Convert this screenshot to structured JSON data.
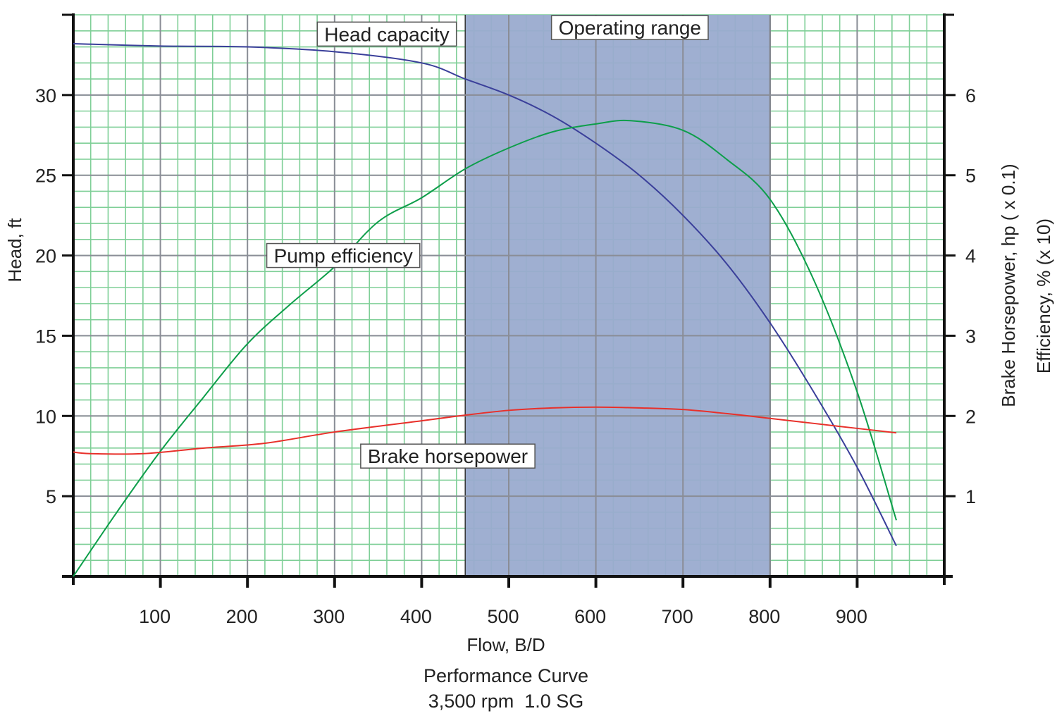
{
  "chart_data": {
    "type": "line",
    "title": "Performance Curve",
    "subtitle": "3,500 rpm  1.0 SG",
    "xlabel": "Flow, B/D",
    "ylabel": "Head, ft",
    "y2label_1": "Brake Horsepower, hp ( x 0.1)",
    "y2label_2": "Efficiency, % (x 10)",
    "xlim": [
      0,
      1000
    ],
    "ylim": [
      0,
      35
    ],
    "y2lim": [
      0,
      7
    ],
    "x_ticks": [
      100,
      200,
      300,
      400,
      500,
      600,
      700,
      800,
      900
    ],
    "y_ticks": [
      5,
      10,
      15,
      20,
      25,
      30
    ],
    "y2_ticks": [
      1,
      2,
      3,
      4,
      5,
      6
    ],
    "grid": true,
    "shaded_region": {
      "label": "Operating range",
      "x_start": 450,
      "x_end": 800,
      "color": "#9aabcf"
    },
    "series": [
      {
        "name": "Head capacity",
        "axis": "left",
        "color": "#3a3f9a",
        "x": [
          0,
          100,
          200,
          300,
          400,
          450,
          500,
          550,
          600,
          650,
          700,
          750,
          800,
          850,
          900,
          945
        ],
        "y": [
          33.2,
          33.05,
          33.0,
          32.7,
          32.0,
          31.0,
          30.0,
          28.7,
          27.0,
          25.0,
          22.5,
          19.5,
          15.8,
          11.5,
          6.8,
          1.9
        ]
      },
      {
        "name": "Pump efficiency",
        "axis": "right",
        "color": "#0d9e4a",
        "x": [
          0,
          50,
          100,
          150,
          200,
          250,
          300,
          350,
          400,
          450,
          500,
          550,
          600,
          640,
          700,
          750,
          800,
          850,
          900,
          945
        ],
        "y": [
          0,
          0.8,
          1.56,
          2.24,
          2.9,
          3.4,
          3.86,
          4.42,
          4.72,
          5.08,
          5.34,
          5.54,
          5.64,
          5.68,
          5.56,
          5.2,
          4.7,
          3.7,
          2.3,
          0.7
        ]
      },
      {
        "name": "Brake horsepower",
        "axis": "right",
        "color": "#e8302a",
        "x": [
          0,
          20,
          80,
          150,
          220,
          300,
          400,
          450,
          500,
          550,
          600,
          650,
          700,
          750,
          800,
          880,
          945
        ],
        "y": [
          1.55,
          1.53,
          1.53,
          1.6,
          1.66,
          1.8,
          1.94,
          2.01,
          2.07,
          2.1,
          2.11,
          2.1,
          2.08,
          2.03,
          1.97,
          1.87,
          1.79
        ]
      }
    ],
    "labels": [
      {
        "text": "Head capacity",
        "x": 360,
        "y": 33.8
      },
      {
        "text": "Pump efficiency",
        "x": 310,
        "y": 20.0
      },
      {
        "text": "Brake horsepower",
        "x": 430,
        "y": 7.5
      }
    ]
  }
}
